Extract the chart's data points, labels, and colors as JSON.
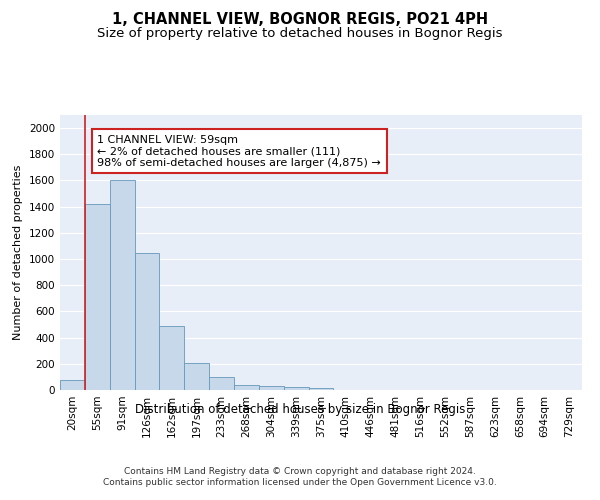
{
  "title": "1, CHANNEL VIEW, BOGNOR REGIS, PO21 4PH",
  "subtitle": "Size of property relative to detached houses in Bognor Regis",
  "xlabel": "Distribution of detached houses by size in Bognor Regis",
  "ylabel": "Number of detached properties",
  "bin_labels": [
    "20sqm",
    "55sqm",
    "91sqm",
    "126sqm",
    "162sqm",
    "197sqm",
    "233sqm",
    "268sqm",
    "304sqm",
    "339sqm",
    "375sqm",
    "410sqm",
    "446sqm",
    "481sqm",
    "516sqm",
    "552sqm",
    "587sqm",
    "623sqm",
    "658sqm",
    "694sqm",
    "729sqm"
  ],
  "bar_heights": [
    80,
    1420,
    1600,
    1050,
    490,
    205,
    100,
    40,
    30,
    22,
    18,
    0,
    0,
    0,
    0,
    0,
    0,
    0,
    0,
    0,
    0
  ],
  "bar_color": "#c8d8eb",
  "bar_edge_color": "#6699bb",
  "vline_color": "#cc2222",
  "annotation_text": "1 CHANNEL VIEW: 59sqm\n← 2% of detached houses are smaller (111)\n98% of semi-detached houses are larger (4,875) →",
  "annotation_box_color": "#ffffff",
  "annotation_box_edge": "#cc2222",
  "ylim": [
    0,
    2100
  ],
  "yticks": [
    0,
    200,
    400,
    600,
    800,
    1000,
    1200,
    1400,
    1600,
    1800,
    2000
  ],
  "background_color": "#e8eef8",
  "footer_text": "Contains HM Land Registry data © Crown copyright and database right 2024.\nContains public sector information licensed under the Open Government Licence v3.0.",
  "title_fontsize": 10.5,
  "subtitle_fontsize": 9.5,
  "xlabel_fontsize": 8.5,
  "ylabel_fontsize": 8,
  "tick_fontsize": 7.5,
  "annotation_fontsize": 8,
  "footer_fontsize": 6.5
}
